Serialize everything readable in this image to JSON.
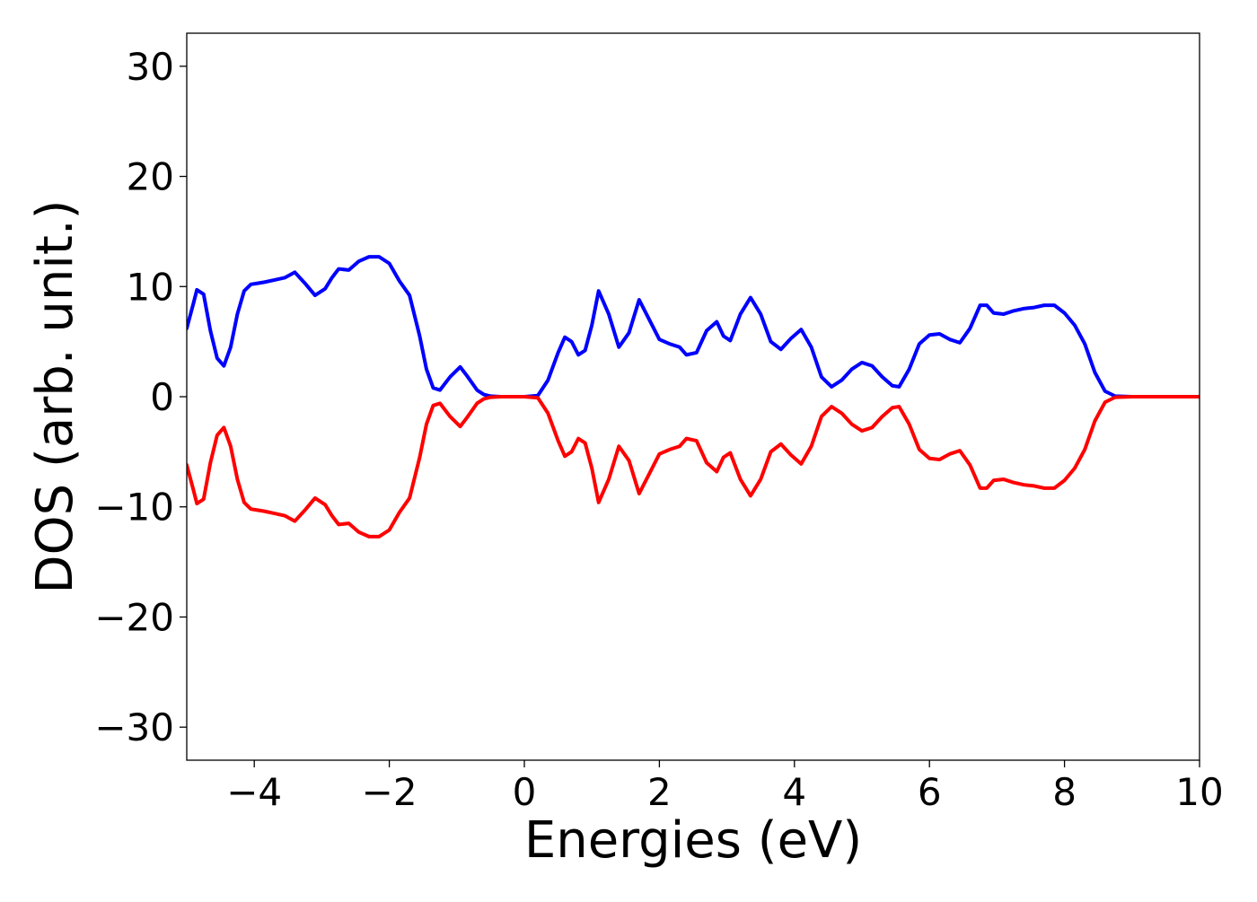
{
  "chart_data": {
    "type": "line",
    "title": "",
    "xlabel": "Energies (eV)",
    "ylabel": "DOS (arb. unit.)",
    "xlim": [
      -5,
      10
    ],
    "ylim": [
      -33,
      33
    ],
    "xticks": [
      -4,
      -2,
      0,
      2,
      4,
      6,
      8,
      10
    ],
    "xtick_labels": [
      "−4",
      "−2",
      "0",
      "2",
      "4",
      "6",
      "8",
      "10"
    ],
    "yticks": [
      -30,
      -20,
      -10,
      0,
      10,
      20,
      30
    ],
    "ytick_labels": [
      "−30",
      "−20",
      "−10",
      "0",
      "10",
      "20",
      "30"
    ],
    "grid": false,
    "series": [
      {
        "color": "#0000ff",
        "x": [
          -5.0,
          -4.9,
          -4.85,
          -4.75,
          -4.65,
          -4.55,
          -4.45,
          -4.35,
          -4.25,
          -4.15,
          -4.05,
          -3.95,
          -3.85,
          -3.7,
          -3.55,
          -3.4,
          -3.25,
          -3.1,
          -2.95,
          -2.85,
          -2.75,
          -2.6,
          -2.45,
          -2.3,
          -2.15,
          -2.0,
          -1.85,
          -1.7,
          -1.55,
          -1.45,
          -1.35,
          -1.25,
          -1.1,
          -0.95,
          -0.85,
          -0.7,
          -0.6,
          -0.5,
          -0.35,
          -0.2,
          0.0,
          0.2,
          0.35,
          0.5,
          0.6,
          0.7,
          0.8,
          0.9,
          1.0,
          1.1,
          1.25,
          1.4,
          1.55,
          1.7,
          1.85,
          2.0,
          2.15,
          2.3,
          2.4,
          2.55,
          2.7,
          2.85,
          2.95,
          3.05,
          3.2,
          3.35,
          3.5,
          3.65,
          3.8,
          3.95,
          4.1,
          4.25,
          4.4,
          4.55,
          4.7,
          4.85,
          5.0,
          5.15,
          5.3,
          5.45,
          5.55,
          5.7,
          5.85,
          6.0,
          6.15,
          6.3,
          6.45,
          6.6,
          6.75,
          6.85,
          6.95,
          7.1,
          7.25,
          7.4,
          7.55,
          7.7,
          7.85,
          8.0,
          8.15,
          8.3,
          8.45,
          8.6,
          8.75,
          9.0,
          10.0
        ],
        "y": [
          6.2,
          8.5,
          9.7,
          9.3,
          6.0,
          3.5,
          2.8,
          4.5,
          7.5,
          9.6,
          10.2,
          10.3,
          10.4,
          10.6,
          10.8,
          11.3,
          10.3,
          9.2,
          9.8,
          10.8,
          11.6,
          11.5,
          12.3,
          12.7,
          12.7,
          12.1,
          10.5,
          9.2,
          5.5,
          2.5,
          0.8,
          0.6,
          1.8,
          2.7,
          1.9,
          0.6,
          0.2,
          0.05,
          0.0,
          0.0,
          0.0,
          0.1,
          1.5,
          4.0,
          5.4,
          5.0,
          3.8,
          4.2,
          6.5,
          9.6,
          7.5,
          4.5,
          5.8,
          8.8,
          7.0,
          5.2,
          4.8,
          4.5,
          3.8,
          4.0,
          6.0,
          6.8,
          5.5,
          5.1,
          7.5,
          9.0,
          7.5,
          5.0,
          4.3,
          5.3,
          6.1,
          4.5,
          1.8,
          0.9,
          1.5,
          2.5,
          3.1,
          2.8,
          1.8,
          1.0,
          0.9,
          2.5,
          4.8,
          5.6,
          5.7,
          5.2,
          4.9,
          6.2,
          8.3,
          8.3,
          7.6,
          7.5,
          7.8,
          8.0,
          8.1,
          8.3,
          8.3,
          7.6,
          6.5,
          4.8,
          2.2,
          0.5,
          0.05,
          0.0,
          0.0
        ]
      },
      {
        "color": "#ff0000",
        "x": [
          -5.0,
          -4.9,
          -4.85,
          -4.75,
          -4.65,
          -4.55,
          -4.45,
          -4.35,
          -4.25,
          -4.15,
          -4.05,
          -3.95,
          -3.85,
          -3.7,
          -3.55,
          -3.4,
          -3.25,
          -3.1,
          -2.95,
          -2.85,
          -2.75,
          -2.6,
          -2.45,
          -2.3,
          -2.15,
          -2.0,
          -1.85,
          -1.7,
          -1.55,
          -1.45,
          -1.35,
          -1.25,
          -1.1,
          -0.95,
          -0.85,
          -0.7,
          -0.6,
          -0.5,
          -0.35,
          -0.2,
          0.0,
          0.2,
          0.35,
          0.5,
          0.6,
          0.7,
          0.8,
          0.9,
          1.0,
          1.1,
          1.25,
          1.4,
          1.55,
          1.7,
          1.85,
          2.0,
          2.15,
          2.3,
          2.4,
          2.55,
          2.7,
          2.85,
          2.95,
          3.05,
          3.2,
          3.35,
          3.5,
          3.65,
          3.8,
          3.95,
          4.1,
          4.25,
          4.4,
          4.55,
          4.7,
          4.85,
          5.0,
          5.15,
          5.3,
          5.45,
          5.55,
          5.7,
          5.85,
          6.0,
          6.15,
          6.3,
          6.45,
          6.6,
          6.75,
          6.85,
          6.95,
          7.1,
          7.25,
          7.4,
          7.55,
          7.7,
          7.85,
          8.0,
          8.15,
          8.3,
          8.45,
          8.6,
          8.75,
          9.0,
          10.0
        ],
        "y": [
          -6.2,
          -8.5,
          -9.7,
          -9.3,
          -6.0,
          -3.5,
          -2.8,
          -4.5,
          -7.5,
          -9.6,
          -10.2,
          -10.3,
          -10.4,
          -10.6,
          -10.8,
          -11.3,
          -10.3,
          -9.2,
          -9.8,
          -10.8,
          -11.6,
          -11.5,
          -12.3,
          -12.7,
          -12.7,
          -12.1,
          -10.5,
          -9.2,
          -5.5,
          -2.5,
          -0.8,
          -0.6,
          -1.8,
          -2.7,
          -1.9,
          -0.6,
          -0.2,
          -0.05,
          0.0,
          0.0,
          0.0,
          -0.1,
          -1.5,
          -4.0,
          -5.4,
          -5.0,
          -3.8,
          -4.2,
          -6.5,
          -9.6,
          -7.5,
          -4.5,
          -5.8,
          -8.8,
          -7.0,
          -5.2,
          -4.8,
          -4.5,
          -3.8,
          -4.0,
          -6.0,
          -6.8,
          -5.5,
          -5.1,
          -7.5,
          -9.0,
          -7.5,
          -5.0,
          -4.3,
          -5.3,
          -6.1,
          -4.5,
          -1.8,
          -0.9,
          -1.5,
          -2.5,
          -3.1,
          -2.8,
          -1.8,
          -1.0,
          -0.9,
          -2.5,
          -4.8,
          -5.6,
          -5.7,
          -5.2,
          -4.9,
          -6.2,
          -8.3,
          -8.3,
          -7.6,
          -7.5,
          -7.8,
          -8.0,
          -8.1,
          -8.3,
          -8.3,
          -7.6,
          -6.5,
          -4.8,
          -2.2,
          -0.5,
          -0.05,
          0.0,
          0.0
        ]
      }
    ]
  }
}
